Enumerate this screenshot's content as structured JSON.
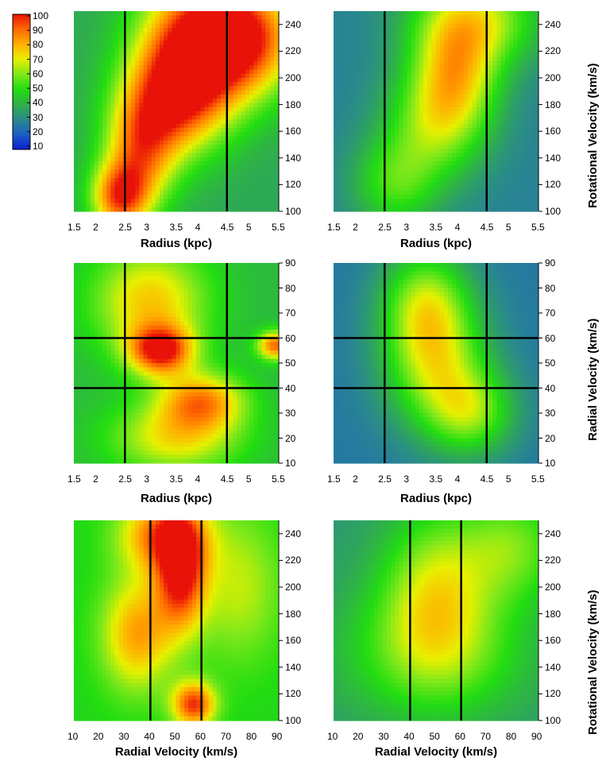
{
  "colorbar": {
    "ticks": [
      "100",
      "90",
      "80",
      "70",
      "60",
      "50",
      "40",
      "30",
      "20",
      "10"
    ],
    "range": [
      10,
      100
    ],
    "colors": [
      "#0a1fd4",
      "#1c5fc4",
      "#2a8a8a",
      "#2fb04a",
      "#22dd10",
      "#7ee81a",
      "#e8f000",
      "#ffb000",
      "#ff6a00",
      "#e81208"
    ]
  },
  "axis_titles": {
    "radius": "Radius (kpc)",
    "radial_velocity": "Radial Velocity (km/s)",
    "rotational_velocity": "Rotational Velocity (km/s)"
  },
  "chart_data": [
    {
      "id": "p1",
      "type": "heatmap",
      "xlabel": "Radius (kpc)",
      "ylabel": "",
      "xlim": [
        1.5,
        5.5
      ],
      "ylim": [
        100,
        250
      ],
      "xticks": [
        "1.5",
        "2",
        "2.5",
        "3",
        "3.5",
        "4",
        "4.5",
        "5",
        "5.5"
      ],
      "yticks": [
        "100",
        "120",
        "140",
        "160",
        "180",
        "200",
        "220",
        "240"
      ],
      "vlines": [
        2.5,
        4.5
      ],
      "hlines": [],
      "peaks": [
        {
          "x": 4.0,
          "y": 230,
          "value": 98,
          "sx": 0.8,
          "sy": 35
        },
        {
          "x": 3.5,
          "y": 185,
          "value": 88,
          "sx": 0.7,
          "sy": 30
        },
        {
          "x": 2.4,
          "y": 110,
          "value": 86,
          "sx": 0.4,
          "sy": 18
        },
        {
          "x": 2.8,
          "y": 145,
          "value": 80,
          "sx": 0.5,
          "sy": 30
        },
        {
          "x": 5.0,
          "y": 230,
          "value": 80,
          "sx": 0.7,
          "sy": 30
        }
      ],
      "base": 38
    },
    {
      "id": "p2",
      "type": "heatmap",
      "xlabel": "Radius (kpc)",
      "ylabel": "Rotational Velocity (km/s)",
      "xlim": [
        1.5,
        5.5
      ],
      "ylim": [
        100,
        250
      ],
      "xticks": [
        "1.5",
        "2",
        "2.5",
        "3",
        "3.5",
        "4",
        "4.5",
        "5",
        "5.5"
      ],
      "yticks": [
        "100",
        "120",
        "140",
        "160",
        "180",
        "200",
        "220",
        "240"
      ],
      "vlines": [
        2.5,
        4.5
      ],
      "hlines": [],
      "peaks": [
        {
          "x": 3.9,
          "y": 205,
          "value": 66,
          "sx": 0.6,
          "sy": 30
        },
        {
          "x": 3.5,
          "y": 165,
          "value": 58,
          "sx": 0.7,
          "sy": 30
        },
        {
          "x": 2.7,
          "y": 120,
          "value": 52,
          "sx": 0.6,
          "sy": 25
        },
        {
          "x": 4.3,
          "y": 245,
          "value": 64,
          "sx": 0.9,
          "sy": 25
        }
      ],
      "base": 28
    },
    {
      "id": "p3",
      "type": "heatmap",
      "xlabel": "Radius (kpc)",
      "ylabel": "",
      "xlim": [
        1.5,
        5.5
      ],
      "ylim": [
        10,
        90
      ],
      "xticks": [
        "1.5",
        "2",
        "2.5",
        "3",
        "3.5",
        "4",
        "4.5",
        "5",
        "5.5"
      ],
      "yticks": [
        "10",
        "20",
        "30",
        "40",
        "50",
        "60",
        "70",
        "80",
        "90"
      ],
      "vlines": [
        2.5,
        4.5
      ],
      "hlines": [
        40,
        60
      ],
      "peaks": [
        {
          "x": 3.2,
          "y": 55,
          "value": 96,
          "sx": 0.45,
          "sy": 7
        },
        {
          "x": 5.45,
          "y": 57,
          "value": 90,
          "sx": 0.25,
          "sy": 4
        },
        {
          "x": 4.0,
          "y": 35,
          "value": 82,
          "sx": 0.6,
          "sy": 8
        },
        {
          "x": 3.0,
          "y": 75,
          "value": 76,
          "sx": 0.8,
          "sy": 15
        },
        {
          "x": 3.5,
          "y": 20,
          "value": 72,
          "sx": 0.9,
          "sy": 10
        }
      ],
      "base": 42
    },
    {
      "id": "p4",
      "type": "heatmap",
      "xlabel": "Radius (kpc)",
      "ylabel": "Radial Velocity (km/s)",
      "xlim": [
        1.5,
        5.5
      ],
      "ylim": [
        10,
        90
      ],
      "xticks": [
        "1.5",
        "2",
        "2.5",
        "3",
        "3.5",
        "4",
        "4.5",
        "5",
        "5.5"
      ],
      "yticks": [
        "10",
        "20",
        "30",
        "40",
        "50",
        "60",
        "70",
        "80",
        "90"
      ],
      "vlines": [
        2.5,
        4.5
      ],
      "hlines": [
        40,
        60
      ],
      "peaks": [
        {
          "x": 3.5,
          "y": 50,
          "value": 64,
          "sx": 0.7,
          "sy": 18
        },
        {
          "x": 3.3,
          "y": 75,
          "value": 58,
          "sx": 0.6,
          "sy": 15
        },
        {
          "x": 4.2,
          "y": 30,
          "value": 56,
          "sx": 0.6,
          "sy": 12
        }
      ],
      "base": 26
    },
    {
      "id": "p5",
      "type": "heatmap",
      "xlabel": "Radial Velocity (km/s)",
      "ylabel": "",
      "xlim": [
        10,
        90
      ],
      "ylim": [
        100,
        250
      ],
      "xticks": [
        "10",
        "20",
        "30",
        "40",
        "50",
        "60",
        "70",
        "80",
        "90"
      ],
      "yticks": [
        "100",
        "120",
        "140",
        "160",
        "180",
        "200",
        "220",
        "240"
      ],
      "vlines": [
        40,
        60
      ],
      "hlines": [],
      "peaks": [
        {
          "x": 52,
          "y": 210,
          "value": 98,
          "sx": 7,
          "sy": 30
        },
        {
          "x": 57,
          "y": 112,
          "value": 96,
          "sx": 6,
          "sy": 12
        },
        {
          "x": 35,
          "y": 165,
          "value": 82,
          "sx": 10,
          "sy": 30
        },
        {
          "x": 45,
          "y": 240,
          "value": 88,
          "sx": 12,
          "sy": 20
        },
        {
          "x": 75,
          "y": 200,
          "value": 66,
          "sx": 12,
          "sy": 40
        }
      ],
      "base": 48
    },
    {
      "id": "p6",
      "type": "heatmap",
      "xlabel": "Radial Velocity (km/s)",
      "ylabel": "Rotational Velocity (km/s)",
      "xlim": [
        10,
        90
      ],
      "ylim": [
        100,
        250
      ],
      "xticks": [
        "10",
        "20",
        "30",
        "40",
        "50",
        "60",
        "70",
        "80",
        "90"
      ],
      "yticks": [
        "100",
        "120",
        "140",
        "160",
        "180",
        "200",
        "220",
        "240"
      ],
      "vlines": [
        40,
        60
      ],
      "hlines": [],
      "peaks": [
        {
          "x": 50,
          "y": 200,
          "value": 64,
          "sx": 15,
          "sy": 40
        },
        {
          "x": 50,
          "y": 150,
          "value": 58,
          "sx": 25,
          "sy": 35
        },
        {
          "x": 80,
          "y": 230,
          "value": 58,
          "sx": 15,
          "sy": 30
        }
      ],
      "base": 34
    }
  ]
}
